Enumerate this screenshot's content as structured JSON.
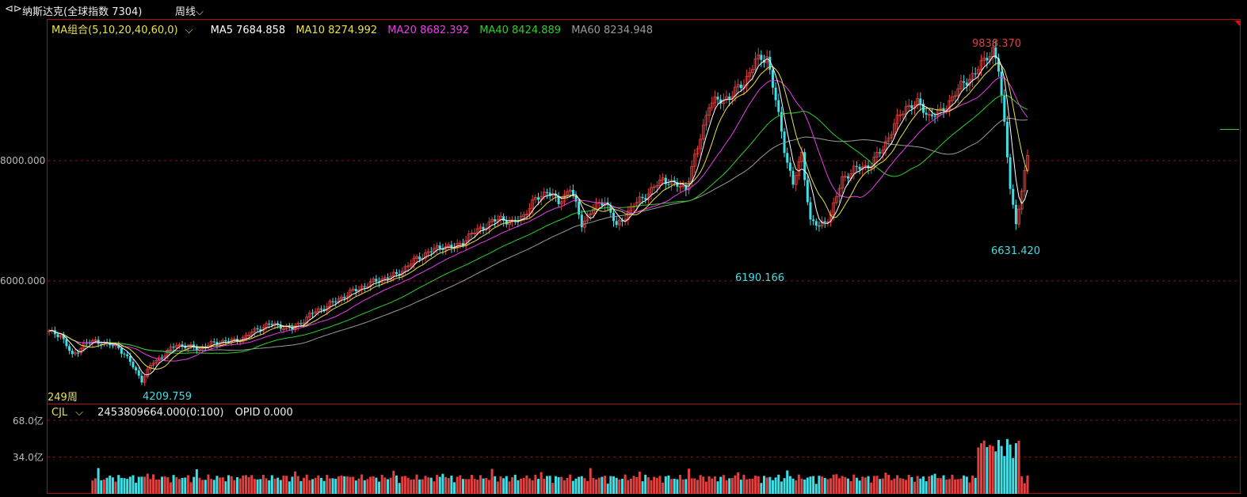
{
  "header": {
    "nav_icon": "back-forward-icon",
    "nav_glyph": "⊲⊳",
    "title": "纳斯达克(全球指数 7304)",
    "period": "周线",
    "dropdown_glyph": "⌵"
  },
  "legend": {
    "group": "MA组合(5,10,20,40,60,0)",
    "ma5": "MA5 7684.858",
    "ma10": "MA10 8274.992",
    "ma20": "MA20 8682.392",
    "ma40": "MA40 8424.889",
    "ma60": "MA60 8234.948"
  },
  "volume_legend": {
    "name": "CJL",
    "value": "2453809664.000(0:100)",
    "opid": "OPID 0.000"
  },
  "axis": {
    "y8000": "8000.000",
    "y6000": "6000.000",
    "vol68": "68.0亿",
    "vol34": "34.0亿"
  },
  "annotations": {
    "count": "249周",
    "high": "9838.370",
    "low1": "4209.759",
    "low2": "6190.166",
    "low3": "6631.420"
  },
  "colors": {
    "up": "#e04040",
    "down": "#3fdfe6",
    "ma5": "#ffffff",
    "ma10": "#e8e24a",
    "ma20": "#e83ee8",
    "ma40": "#2ccf2c",
    "ma60": "#9a9a9a",
    "grid": "#8b1010",
    "frame": "#b01010"
  },
  "chart_data": {
    "type": "candlestick",
    "title": "纳斯达克(全球指数 7304) 周线",
    "ylim": [
      4100,
      10100
    ],
    "volume_ylim": [
      0,
      68
    ],
    "y_ticks": [
      6000,
      8000
    ],
    "volume_ticks": [
      34,
      68
    ],
    "legend_placement": "top-left",
    "series_names": [
      "MA5",
      "MA10",
      "MA20",
      "MA40",
      "MA60"
    ],
    "anchors": [
      [
        0,
        5150
      ],
      [
        4,
        5100
      ],
      [
        8,
        4750
      ],
      [
        12,
        4950
      ],
      [
        16,
        5000
      ],
      [
        20,
        4950
      ],
      [
        24,
        4900
      ],
      [
        28,
        4650
      ],
      [
        32,
        4350
      ],
      [
        36,
        4650
      ],
      [
        40,
        4780
      ],
      [
        44,
        4950
      ],
      [
        48,
        4900
      ],
      [
        52,
        4880
      ],
      [
        56,
        4950
      ],
      [
        60,
        5000
      ],
      [
        64,
        5000
      ],
      [
        68,
        5080
      ],
      [
        72,
        5200
      ],
      [
        76,
        5280
      ],
      [
        80,
        5250
      ],
      [
        84,
        5200
      ],
      [
        88,
        5350
      ],
      [
        92,
        5500
      ],
      [
        96,
        5580
      ],
      [
        100,
        5700
      ],
      [
        104,
        5800
      ],
      [
        108,
        5900
      ],
      [
        112,
        5980
      ],
      [
        116,
        6050
      ],
      [
        120,
        6100
      ],
      [
        124,
        6260
      ],
      [
        128,
        6400
      ],
      [
        132,
        6500
      ],
      [
        136,
        6580
      ],
      [
        140,
        6550
      ],
      [
        144,
        6700
      ],
      [
        148,
        6850
      ],
      [
        152,
        6950
      ],
      [
        156,
        7050
      ],
      [
        160,
        6950
      ],
      [
        164,
        7100
      ],
      [
        168,
        7350
      ],
      [
        172,
        7500
      ],
      [
        176,
        7300
      ],
      [
        180,
        7550
      ],
      [
        184,
        6950
      ],
      [
        188,
        7200
      ],
      [
        192,
        7350
      ],
      [
        196,
        6900
      ],
      [
        200,
        7150
      ],
      [
        204,
        7350
      ],
      [
        208,
        7500
      ],
      [
        212,
        7700
      ],
      [
        216,
        7600
      ],
      [
        220,
        7550
      ],
      [
        224,
        8200
      ],
      [
        228,
        8950
      ],
      [
        232,
        9000
      ],
      [
        236,
        9100
      ],
      [
        240,
        9300
      ],
      [
        244,
        9650
      ],
      [
        248,
        9731
      ],
      [
        251,
        9000
      ],
      [
        254,
        8200
      ],
      [
        257,
        7600
      ],
      [
        260,
        8100
      ],
      [
        263,
        7000
      ],
      [
        266,
        6900
      ],
      [
        270,
        7100
      ],
      [
        274,
        7700
      ],
      [
        278,
        7850
      ],
      [
        282,
        7900
      ],
      [
        284,
        7950
      ],
      [
        288,
        8200
      ],
      [
        292,
        8600
      ],
      [
        296,
        8900
      ],
      [
        300,
        8950
      ],
      [
        304,
        8750
      ],
      [
        308,
        8800
      ],
      [
        312,
        9050
      ],
      [
        316,
        9300
      ],
      [
        320,
        9450
      ],
      [
        324,
        9750
      ],
      [
        326,
        9838
      ],
      [
        328,
        9500
      ],
      [
        330,
        8600
      ],
      [
        332,
        7600
      ],
      [
        334,
        6900
      ],
      [
        336,
        7500
      ],
      [
        338,
        8100
      ]
    ],
    "price_extremes": {
      "max": 9838.37,
      "min": 4209.759,
      "local_min_1": 6190.166,
      "local_min_2": 6631.42
    },
    "latest": {
      "ma5": 7684.858,
      "ma10": 8274.992,
      "ma20": 8682.392,
      "ma40": 8424.889,
      "ma60": 8234.948,
      "volume": 2453809664.0,
      "opid": 0.0
    }
  }
}
